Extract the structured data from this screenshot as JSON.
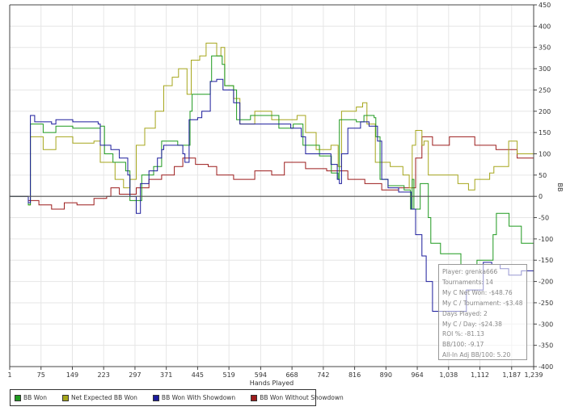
{
  "chart_data": {
    "type": "line",
    "title": "",
    "xlabel": "Hands Played",
    "ylabel": "BB",
    "xlim": [
      1,
      1239
    ],
    "ylim": [
      -400,
      450
    ],
    "x_ticks": [
      "1",
      "75",
      "149",
      "223",
      "297",
      "371",
      "445",
      "519",
      "594",
      "668",
      "742",
      "816",
      "890",
      "964",
      "1,038",
      "1,112",
      "1,187",
      "1,239"
    ],
    "x_tick_values": [
      1,
      75,
      149,
      223,
      297,
      371,
      445,
      519,
      594,
      668,
      742,
      816,
      890,
      964,
      1038,
      1112,
      1187,
      1239
    ],
    "y_ticks": [
      450,
      400,
      350,
      300,
      250,
      200,
      150,
      100,
      50,
      0,
      -50,
      -100,
      -150,
      -200,
      -250,
      -300,
      -350,
      -400
    ],
    "grid": true,
    "legend_position": "bottom",
    "series": [
      {
        "name": "BB Won",
        "color": "#1f9a1f",
        "points": [
          [
            1,
            0
          ],
          [
            45,
            -20
          ],
          [
            50,
            170
          ],
          [
            80,
            150
          ],
          [
            110,
            165
          ],
          [
            150,
            160
          ],
          [
            215,
            165
          ],
          [
            225,
            100
          ],
          [
            245,
            80
          ],
          [
            275,
            60
          ],
          [
            285,
            -10
          ],
          [
            313,
            50
          ],
          [
            341,
            70
          ],
          [
            360,
            130
          ],
          [
            379,
            130
          ],
          [
            398,
            120
          ],
          [
            427,
            200
          ],
          [
            432,
            240
          ],
          [
            475,
            270
          ],
          [
            478,
            330
          ],
          [
            503,
            310
          ],
          [
            509,
            260
          ],
          [
            530,
            250
          ],
          [
            537,
            180
          ],
          [
            570,
            190
          ],
          [
            637,
            160
          ],
          [
            671,
            170
          ],
          [
            694,
            120
          ],
          [
            733,
            95
          ],
          [
            761,
            55
          ],
          [
            777,
            40
          ],
          [
            780,
            180
          ],
          [
            820,
            175
          ],
          [
            838,
            190
          ],
          [
            862,
            185
          ],
          [
            866,
            140
          ],
          [
            876,
            40
          ],
          [
            895,
            25
          ],
          [
            933,
            15
          ],
          [
            948,
            -30
          ],
          [
            952,
            40
          ],
          [
            956,
            -30
          ],
          [
            971,
            30
          ],
          [
            990,
            -50
          ],
          [
            996,
            -110
          ],
          [
            1019,
            -135
          ],
          [
            1067,
            -160
          ],
          [
            1105,
            -150
          ],
          [
            1143,
            -90
          ],
          [
            1151,
            -40
          ],
          [
            1181,
            -70
          ],
          [
            1210,
            -110
          ],
          [
            1239,
            -100
          ]
        ]
      },
      {
        "name": "Net Expected BB Won",
        "color": "#a6a61c",
        "points": [
          [
            1,
            0
          ],
          [
            45,
            -20
          ],
          [
            50,
            140
          ],
          [
            80,
            110
          ],
          [
            110,
            140
          ],
          [
            150,
            125
          ],
          [
            200,
            130
          ],
          [
            215,
            80
          ],
          [
            235,
            80
          ],
          [
            250,
            40
          ],
          [
            270,
            20
          ],
          [
            285,
            40
          ],
          [
            300,
            120
          ],
          [
            320,
            160
          ],
          [
            345,
            200
          ],
          [
            365,
            260
          ],
          [
            385,
            280
          ],
          [
            400,
            300
          ],
          [
            420,
            240
          ],
          [
            430,
            320
          ],
          [
            450,
            330
          ],
          [
            465,
            360
          ],
          [
            490,
            330
          ],
          [
            500,
            350
          ],
          [
            509,
            260
          ],
          [
            530,
            230
          ],
          [
            545,
            170
          ],
          [
            580,
            200
          ],
          [
            620,
            180
          ],
          [
            680,
            190
          ],
          [
            700,
            150
          ],
          [
            725,
            110
          ],
          [
            760,
            120
          ],
          [
            777,
            70
          ],
          [
            785,
            200
          ],
          [
            820,
            210
          ],
          [
            835,
            220
          ],
          [
            845,
            170
          ],
          [
            865,
            80
          ],
          [
            900,
            70
          ],
          [
            930,
            50
          ],
          [
            945,
            20
          ],
          [
            952,
            120
          ],
          [
            960,
            155
          ],
          [
            975,
            120
          ],
          [
            980,
            130
          ],
          [
            990,
            50
          ],
          [
            1060,
            30
          ],
          [
            1085,
            15
          ],
          [
            1100,
            40
          ],
          [
            1135,
            55
          ],
          [
            1145,
            70
          ],
          [
            1180,
            130
          ],
          [
            1200,
            100
          ],
          [
            1239,
            70
          ]
        ]
      },
      {
        "name": "BB Won With Showdown",
        "color": "#1c1c9c",
        "points": [
          [
            1,
            0
          ],
          [
            45,
            -15
          ],
          [
            50,
            190
          ],
          [
            60,
            175
          ],
          [
            100,
            170
          ],
          [
            110,
            180
          ],
          [
            150,
            175
          ],
          [
            210,
            170
          ],
          [
            215,
            120
          ],
          [
            240,
            110
          ],
          [
            260,
            90
          ],
          [
            280,
            50
          ],
          [
            285,
            0
          ],
          [
            300,
            -40
          ],
          [
            310,
            30
          ],
          [
            330,
            60
          ],
          [
            350,
            90
          ],
          [
            360,
            110
          ],
          [
            365,
            120
          ],
          [
            390,
            120
          ],
          [
            410,
            100
          ],
          [
            415,
            80
          ],
          [
            425,
            180
          ],
          [
            445,
            185
          ],
          [
            455,
            200
          ],
          [
            475,
            270
          ],
          [
            490,
            275
          ],
          [
            505,
            250
          ],
          [
            530,
            220
          ],
          [
            545,
            170
          ],
          [
            650,
            170
          ],
          [
            665,
            160
          ],
          [
            690,
            140
          ],
          [
            700,
            100
          ],
          [
            750,
            100
          ],
          [
            760,
            75
          ],
          [
            775,
            40
          ],
          [
            780,
            30
          ],
          [
            785,
            100
          ],
          [
            800,
            160
          ],
          [
            830,
            175
          ],
          [
            850,
            165
          ],
          [
            870,
            130
          ],
          [
            880,
            40
          ],
          [
            895,
            20
          ],
          [
            920,
            10
          ],
          [
            950,
            -30
          ],
          [
            960,
            -90
          ],
          [
            975,
            -140
          ],
          [
            985,
            -200
          ],
          [
            1000,
            -270
          ],
          [
            1050,
            -270
          ],
          [
            1080,
            -220
          ],
          [
            1120,
            -155
          ],
          [
            1140,
            -160
          ],
          [
            1160,
            -170
          ],
          [
            1180,
            -185
          ],
          [
            1210,
            -175
          ],
          [
            1239,
            -185
          ]
        ]
      },
      {
        "name": "BB Won Without Showdown",
        "color": "#9c1c1c",
        "points": [
          [
            1,
            0
          ],
          [
            45,
            -10
          ],
          [
            70,
            -20
          ],
          [
            100,
            -30
          ],
          [
            130,
            -15
          ],
          [
            160,
            -20
          ],
          [
            200,
            -5
          ],
          [
            230,
            0
          ],
          [
            240,
            20
          ],
          [
            260,
            5
          ],
          [
            300,
            20
          ],
          [
            330,
            40
          ],
          [
            360,
            50
          ],
          [
            390,
            70
          ],
          [
            410,
            90
          ],
          [
            440,
            75
          ],
          [
            470,
            70
          ],
          [
            490,
            50
          ],
          [
            530,
            40
          ],
          [
            580,
            60
          ],
          [
            620,
            50
          ],
          [
            650,
            80
          ],
          [
            700,
            65
          ],
          [
            750,
            60
          ],
          [
            800,
            40
          ],
          [
            840,
            30
          ],
          [
            880,
            15
          ],
          [
            920,
            20
          ],
          [
            940,
            20
          ],
          [
            960,
            90
          ],
          [
            975,
            140
          ],
          [
            1000,
            120
          ],
          [
            1040,
            140
          ],
          [
            1100,
            120
          ],
          [
            1150,
            110
          ],
          [
            1200,
            90
          ],
          [
            1239,
            75
          ]
        ]
      }
    ]
  },
  "tooltip": {
    "lines": [
      "Player: grenka666",
      "Tournaments: 14",
      "My C Net Won: -$48.76",
      "My C / Tournament: -$3.48",
      "Days Played: 2",
      "My C / Day: -$24.38",
      "ROI %: -81.13",
      "BB/100: -9.17",
      "All-In Adj BB/100: 5.20"
    ]
  }
}
